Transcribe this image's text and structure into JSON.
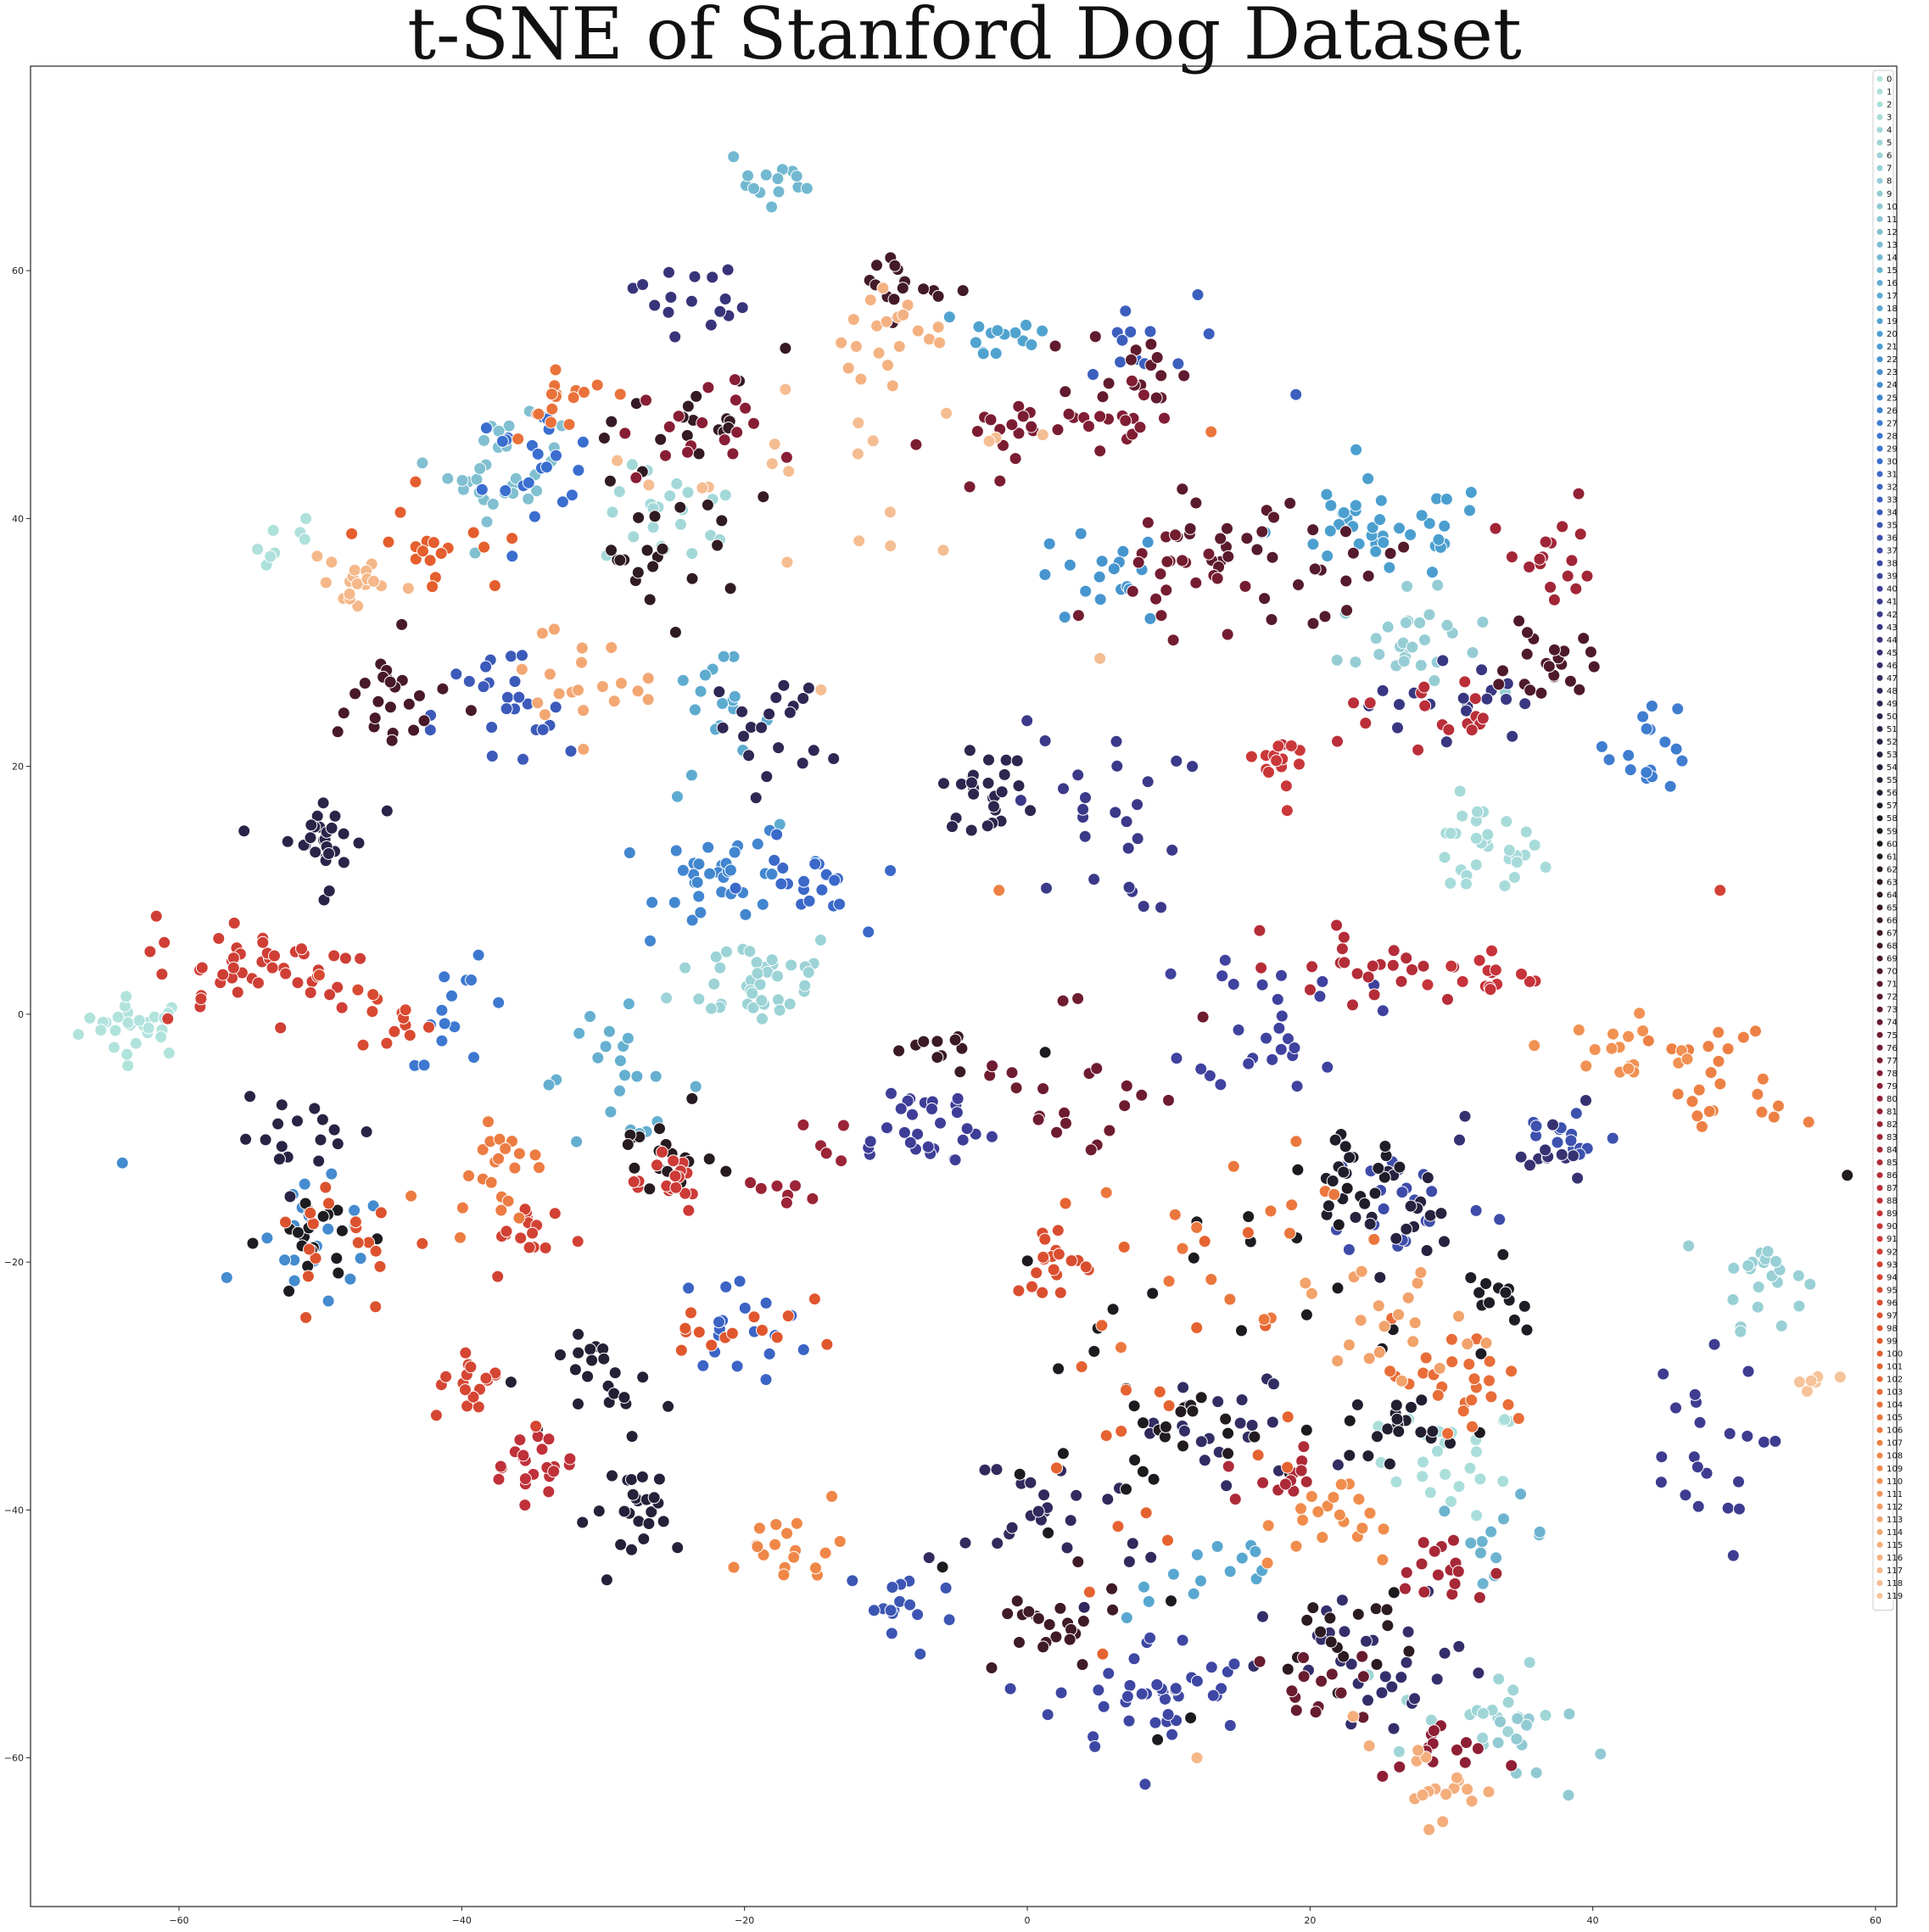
{
  "chart_data": {
    "type": "scatter",
    "title": "t-SNE of Stanford Dog Dataset",
    "xlabel": "",
    "ylabel": "",
    "xlim": [
      -70.5,
      61.5
    ],
    "ylim": [
      -72,
      76.5
    ],
    "xticks": [
      -60,
      -40,
      -20,
      0,
      20,
      40,
      60
    ],
    "yticks": [
      -60,
      -40,
      -20,
      0,
      20,
      40,
      60
    ],
    "legend_position": "top-right",
    "legend_labels": [
      "0",
      "1",
      "2",
      "3",
      "4",
      "5",
      "6",
      "7",
      "8",
      "9",
      "10",
      "11",
      "12",
      "13",
      "14",
      "15",
      "16",
      "17",
      "18",
      "19",
      "20",
      "21",
      "22",
      "23",
      "24",
      "25",
      "26",
      "27",
      "28",
      "29",
      "30",
      "31",
      "32",
      "33",
      "34",
      "35",
      "36",
      "37",
      "38",
      "39",
      "40",
      "41",
      "42",
      "43",
      "44",
      "45",
      "46",
      "47",
      "48",
      "49",
      "50",
      "51",
      "52",
      "53",
      "54",
      "55",
      "56",
      "57",
      "58",
      "59",
      "60",
      "61",
      "62",
      "63",
      "64",
      "65",
      "66",
      "67",
      "68",
      "69",
      "70",
      "71",
      "72",
      "73",
      "74",
      "75",
      "76",
      "77",
      "78",
      "79",
      "80",
      "81",
      "82",
      "83",
      "84",
      "85",
      "86",
      "87",
      "88",
      "89",
      "90",
      "91",
      "92",
      "93",
      "94",
      "95",
      "96",
      "97",
      "98",
      "99",
      "100",
      "101",
      "102",
      "103",
      "104",
      "105",
      "106",
      "107",
      "108",
      "109",
      "110",
      "111",
      "112",
      "113",
      "114",
      "115",
      "116",
      "117",
      "118",
      "119"
    ],
    "palette": "icefire",
    "palette_stops": [
      "#b1e3dd",
      "#8fc8d2",
      "#4ba0cf",
      "#3a6fd0",
      "#3f3f9a",
      "#2e2650",
      "#1b1b1e",
      "#4a1a2a",
      "#8a1e35",
      "#c8343a",
      "#e35a2b",
      "#f08c4c",
      "#f6c39a"
    ],
    "clusters": [
      {
        "label": 0,
        "x": -63,
        "y": -1,
        "sx": 2.0,
        "sy": 1.2,
        "n": 28
      },
      {
        "label": 1,
        "x": -52,
        "y": 38,
        "sx": 1.5,
        "sy": 1.3,
        "n": 8
      },
      {
        "label": 2,
        "x": 30,
        "y": -36,
        "sx": 2.5,
        "sy": 2.2,
        "n": 25
      },
      {
        "label": 3,
        "x": 32,
        "y": 13,
        "sx": 2.2,
        "sy": 2.0,
        "n": 30
      },
      {
        "label": 4,
        "x": -25,
        "y": 40,
        "sx": 2.5,
        "sy": 2.0,
        "n": 22
      },
      {
        "label": 5,
        "x": 31,
        "y": -56,
        "sx": 3.0,
        "sy": 2.5,
        "n": 18
      },
      {
        "label": 6,
        "x": -19,
        "y": 3,
        "sx": 3.0,
        "sy": 2.0,
        "n": 40
      },
      {
        "label": 7,
        "x": 52,
        "y": -21,
        "sx": 1.5,
        "sy": 2.0,
        "n": 22
      },
      {
        "label": 8,
        "x": 27,
        "y": 30,
        "sx": 2.5,
        "sy": 2.0,
        "n": 28
      },
      {
        "label": 9,
        "x": 35,
        "y": -59,
        "sx": 2.0,
        "sy": 2.5,
        "n": 12
      },
      {
        "label": 12,
        "x": -37,
        "y": 44,
        "sx": 2.0,
        "sy": 2.0,
        "n": 30
      },
      {
        "label": 14,
        "x": -18,
        "y": 67,
        "sx": 1.8,
        "sy": 1.5,
        "n": 14
      },
      {
        "label": 15,
        "x": 33,
        "y": -42,
        "sx": 2.0,
        "sy": 1.5,
        "n": 12
      },
      {
        "label": 16,
        "x": -29,
        "y": -5,
        "sx": 3.0,
        "sy": 2.5,
        "n": 22
      },
      {
        "label": 17,
        "x": -22,
        "y": 23,
        "sx": 2.0,
        "sy": 3.0,
        "n": 18
      },
      {
        "label": 18,
        "x": 13,
        "y": -45,
        "sx": 3.0,
        "sy": 2.0,
        "n": 14
      },
      {
        "label": 19,
        "x": -2,
        "y": 55,
        "sx": 2.5,
        "sy": 1.5,
        "n": 14
      },
      {
        "label": 20,
        "x": 25,
        "y": 39,
        "sx": 4.0,
        "sy": 2.0,
        "n": 40
      },
      {
        "label": 22,
        "x": 5,
        "y": 35,
        "sx": 2.5,
        "sy": 2.0,
        "n": 18
      },
      {
        "label": 24,
        "x": -50,
        "y": -19,
        "sx": 2.5,
        "sy": 2.5,
        "n": 22
      },
      {
        "label": 25,
        "x": -21,
        "y": 11,
        "sx": 2.5,
        "sy": 2.0,
        "n": 35
      },
      {
        "label": 27,
        "x": 44,
        "y": 22,
        "sx": 1.5,
        "sy": 2.0,
        "n": 18
      },
      {
        "label": 28,
        "x": -40,
        "y": 0,
        "sx": 2.0,
        "sy": 2.0,
        "n": 14
      },
      {
        "label": 30,
        "x": -35,
        "y": 45,
        "sx": 2.5,
        "sy": 2.0,
        "n": 22
      },
      {
        "label": 31,
        "x": -16,
        "y": 10,
        "sx": 2.0,
        "sy": 2.0,
        "n": 20
      },
      {
        "label": 32,
        "x": -20,
        "y": -25,
        "sx": 2.5,
        "sy": 2.0,
        "n": 18
      },
      {
        "label": 33,
        "x": 7,
        "y": 54,
        "sx": 2.5,
        "sy": 2.0,
        "n": 12
      },
      {
        "label": 34,
        "x": -37,
        "y": 24,
        "sx": 2.5,
        "sy": 3.0,
        "n": 24
      },
      {
        "label": 35,
        "x": -9,
        "y": -48,
        "sx": 2.0,
        "sy": 2.0,
        "n": 16
      },
      {
        "label": 36,
        "x": 38,
        "y": -10,
        "sx": 2.0,
        "sy": 1.5,
        "n": 14
      },
      {
        "label": 37,
        "x": 27,
        "y": -15,
        "sx": 3.0,
        "sy": 2.5,
        "n": 24
      },
      {
        "label": 38,
        "x": 9,
        "y": -55,
        "sx": 3.5,
        "sy": 2.5,
        "n": 40
      },
      {
        "label": 39,
        "x": 18,
        "y": 0,
        "sx": 3.0,
        "sy": 3.0,
        "n": 28
      },
      {
        "label": 40,
        "x": -8,
        "y": -9,
        "sx": 3.0,
        "sy": 2.0,
        "n": 30
      },
      {
        "label": 41,
        "x": 47,
        "y": -36,
        "sx": 2.5,
        "sy": 4.0,
        "n": 22
      },
      {
        "label": 42,
        "x": 5,
        "y": 16,
        "sx": 3.0,
        "sy": 4.0,
        "n": 26
      },
      {
        "label": 43,
        "x": 30,
        "y": 25,
        "sx": 3.0,
        "sy": 2.0,
        "n": 18
      },
      {
        "label": 44,
        "x": -24,
        "y": 58,
        "sx": 2.0,
        "sy": 1.5,
        "n": 16
      },
      {
        "label": 45,
        "x": 36,
        "y": -11,
        "sx": 2.5,
        "sy": 2.0,
        "n": 14
      },
      {
        "label": 46,
        "x": 25,
        "y": -53,
        "sx": 4.0,
        "sy": 3.0,
        "n": 30
      },
      {
        "label": 47,
        "x": 14,
        "y": -34,
        "sx": 3.5,
        "sy": 2.5,
        "n": 22
      },
      {
        "label": 48,
        "x": 2,
        "y": -40,
        "sx": 4.0,
        "sy": 3.0,
        "n": 26
      },
      {
        "label": 49,
        "x": -18,
        "y": 23,
        "sx": 2.0,
        "sy": 2.5,
        "n": 20
      },
      {
        "label": 50,
        "x": -3,
        "y": 18,
        "sx": 1.5,
        "sy": 1.5,
        "n": 26
      },
      {
        "label": 51,
        "x": -50,
        "y": 14,
        "sx": 1.8,
        "sy": 2.0,
        "n": 28
      },
      {
        "label": 52,
        "x": -51,
        "y": -10,
        "sx": 2.5,
        "sy": 1.5,
        "n": 18
      },
      {
        "label": 53,
        "x": 26,
        "y": -16,
        "sx": 2.0,
        "sy": 2.0,
        "n": 18
      },
      {
        "label": 54,
        "x": -27,
        "y": -40,
        "sx": 2.0,
        "sy": 2.0,
        "n": 24
      },
      {
        "label": 55,
        "x": -29,
        "y": -30,
        "sx": 2.0,
        "sy": 2.0,
        "n": 22
      },
      {
        "label": 56,
        "x": 26,
        "y": -33,
        "sx": 1.5,
        "sy": 1.5,
        "n": 18
      },
      {
        "label": 57,
        "x": 23,
        "y": -13,
        "sx": 2.0,
        "sy": 1.5,
        "n": 20
      },
      {
        "label": 58,
        "x": 34,
        "y": -23,
        "sx": 1.5,
        "sy": 1.5,
        "n": 14
      },
      {
        "label": 59,
        "x": -50,
        "y": -18,
        "sx": 2.0,
        "sy": 2.0,
        "n": 22
      },
      {
        "label": 60,
        "x": 10,
        "y": -30,
        "sx": 8.0,
        "sy": 12.0,
        "n": 40
      },
      {
        "label": 61,
        "x": 12,
        "y": -33,
        "sx": 1.5,
        "sy": 1.5,
        "n": 12
      },
      {
        "label": 62,
        "x": -26,
        "y": -12,
        "sx": 2.0,
        "sy": 2.0,
        "n": 18
      },
      {
        "label": 63,
        "x": 22,
        "y": -50,
        "sx": 3.0,
        "sy": 2.0,
        "n": 16
      },
      {
        "label": 64,
        "x": -26,
        "y": 37,
        "sx": 3.0,
        "sy": 2.5,
        "n": 22
      },
      {
        "label": 65,
        "x": -22,
        "y": 48,
        "sx": 3.0,
        "sy": 2.5,
        "n": 18
      },
      {
        "label": 66,
        "x": -6,
        "y": -3,
        "sx": 1.2,
        "sy": 1.2,
        "n": 10
      },
      {
        "label": 67,
        "x": 1,
        "y": -50,
        "sx": 3.0,
        "sy": 2.0,
        "n": 22
      },
      {
        "label": 68,
        "x": -9,
        "y": 59,
        "sx": 1.5,
        "sy": 1.5,
        "n": 16
      },
      {
        "label": 69,
        "x": -45,
        "y": 25,
        "sx": 2.5,
        "sy": 2.5,
        "n": 24
      },
      {
        "label": 70,
        "x": 37,
        "y": 28,
        "sx": 1.5,
        "sy": 1.5,
        "n": 22
      },
      {
        "label": 71,
        "x": 20,
        "y": 36,
        "sx": 3.0,
        "sy": 2.0,
        "n": 18
      },
      {
        "label": 72,
        "x": 14,
        "y": 39,
        "sx": 2.5,
        "sy": 2.0,
        "n": 16
      },
      {
        "label": 73,
        "x": 8,
        "y": 52,
        "sx": 2.0,
        "sy": 1.5,
        "n": 16
      },
      {
        "label": 74,
        "x": 20,
        "y": -54,
        "sx": 2.0,
        "sy": 1.5,
        "n": 14
      },
      {
        "label": 75,
        "x": 4,
        "y": -5,
        "sx": 4.0,
        "sy": 4.0,
        "n": 22
      },
      {
        "label": 76,
        "x": 10,
        "y": 36,
        "sx": 2.5,
        "sy": 2.5,
        "n": 22
      },
      {
        "label": 77,
        "x": -2,
        "y": 46,
        "sx": 2.5,
        "sy": 2.0,
        "n": 20
      },
      {
        "label": 78,
        "x": 6,
        "y": 48,
        "sx": 2.0,
        "sy": 1.5,
        "n": 14
      },
      {
        "label": 79,
        "x": -24,
        "y": 47,
        "sx": 2.5,
        "sy": 2.0,
        "n": 18
      },
      {
        "label": 80,
        "x": 29,
        "y": -60,
        "sx": 2.0,
        "sy": 1.5,
        "n": 14
      },
      {
        "label": 82,
        "x": -16,
        "y": -13,
        "sx": 1.5,
        "sy": 2.0,
        "n": 12
      },
      {
        "label": 83,
        "x": 37,
        "y": 36,
        "sx": 1.5,
        "sy": 2.0,
        "n": 16
      },
      {
        "label": 84,
        "x": 29,
        "y": -45,
        "sx": 2.0,
        "sy": 1.5,
        "n": 16
      },
      {
        "label": 85,
        "x": 18,
        "y": -37,
        "sx": 2.0,
        "sy": 1.5,
        "n": 12
      },
      {
        "label": 86,
        "x": 25,
        "y": 4,
        "sx": 3.5,
        "sy": 1.5,
        "n": 24
      },
      {
        "label": 87,
        "x": 28,
        "y": 24,
        "sx": 3.0,
        "sy": 1.5,
        "n": 18
      },
      {
        "label": 88,
        "x": -35,
        "y": -36,
        "sx": 1.5,
        "sy": 1.5,
        "n": 22
      },
      {
        "label": 89,
        "x": 32,
        "y": 3,
        "sx": 2.0,
        "sy": 1.0,
        "n": 14
      },
      {
        "label": 90,
        "x": 19,
        "y": 20,
        "sx": 1.2,
        "sy": 1.5,
        "n": 14
      },
      {
        "label": 91,
        "x": -26,
        "y": -13,
        "sx": 1.8,
        "sy": 1.5,
        "n": 18
      },
      {
        "label": 92,
        "x": -54,
        "y": 4,
        "sx": 4.0,
        "sy": 2.0,
        "n": 48
      },
      {
        "label": 93,
        "x": -35,
        "y": -18,
        "sx": 1.5,
        "sy": 1.5,
        "n": 16
      },
      {
        "label": 94,
        "x": -39,
        "y": -30,
        "sx": 1.5,
        "sy": 1.5,
        "n": 18
      },
      {
        "label": 95,
        "x": -45,
        "y": 0,
        "sx": 1.5,
        "sy": 1.5,
        "n": 14
      },
      {
        "label": 96,
        "x": 2,
        "y": -20,
        "sx": 1.5,
        "sy": 1.5,
        "n": 20
      },
      {
        "label": 97,
        "x": -48,
        "y": -18,
        "sx": 3.0,
        "sy": 3.0,
        "n": 18
      },
      {
        "label": 98,
        "x": -21,
        "y": -25,
        "sx": 2.5,
        "sy": 2.0,
        "n": 14
      },
      {
        "label": 100,
        "x": -42,
        "y": 38,
        "sx": 2.5,
        "sy": 2.0,
        "n": 18
      },
      {
        "label": 101,
        "x": 9,
        "y": -30,
        "sx": 6.0,
        "sy": 8.0,
        "n": 22
      },
      {
        "label": 103,
        "x": 30,
        "y": -30,
        "sx": 3.0,
        "sy": 2.5,
        "n": 26
      },
      {
        "label": 104,
        "x": -33,
        "y": 50,
        "sx": 2.0,
        "sy": 1.5,
        "n": 16
      },
      {
        "label": 105,
        "x": 14,
        "y": -18,
        "sx": 4.0,
        "sy": 5.0,
        "n": 18
      },
      {
        "label": 106,
        "x": -38,
        "y": -12,
        "sx": 2.0,
        "sy": 2.0,
        "n": 22
      },
      {
        "label": 107,
        "x": 50,
        "y": -6,
        "sx": 2.5,
        "sy": 2.5,
        "n": 24
      },
      {
        "label": 108,
        "x": -17,
        "y": -43,
        "sx": 2.0,
        "sy": 1.5,
        "n": 18
      },
      {
        "label": 109,
        "x": 22,
        "y": -41,
        "sx": 2.5,
        "sy": 2.0,
        "n": 20
      },
      {
        "label": 110,
        "x": 42,
        "y": -3,
        "sx": 2.5,
        "sy": 1.5,
        "n": 18
      },
      {
        "label": 113,
        "x": 25,
        "y": -25,
        "sx": 3.0,
        "sy": 2.5,
        "n": 22
      },
      {
        "label": 114,
        "x": -32,
        "y": 27,
        "sx": 2.5,
        "sy": 2.5,
        "n": 20
      },
      {
        "label": 115,
        "x": 28,
        "y": -62,
        "sx": 2.5,
        "sy": 1.5,
        "n": 18
      },
      {
        "label": 116,
        "x": -9,
        "y": 54,
        "sx": 2.0,
        "sy": 2.0,
        "n": 20
      },
      {
        "label": 117,
        "x": -48,
        "y": 35,
        "sx": 1.5,
        "sy": 1.5,
        "n": 18
      },
      {
        "label": 118,
        "x": -13,
        "y": 44,
        "sx": 8.0,
        "sy": 6.0,
        "n": 22
      },
      {
        "label": 119,
        "x": 55,
        "y": -30,
        "sx": 1.0,
        "sy": 1.0,
        "n": 6
      }
    ],
    "outliers": [
      {
        "label": 24,
        "x": -64,
        "y": -12
      },
      {
        "label": 61,
        "x": 58,
        "y": -13
      },
      {
        "label": 107,
        "x": -2,
        "y": 10
      },
      {
        "label": 33,
        "x": 19,
        "y": 50
      },
      {
        "label": 117,
        "x": 12,
        "y": -60
      },
      {
        "label": 93,
        "x": 49,
        "y": 10
      },
      {
        "label": 81,
        "x": 39,
        "y": 42
      },
      {
        "label": 105,
        "x": 13,
        "y": 47
      }
    ]
  }
}
